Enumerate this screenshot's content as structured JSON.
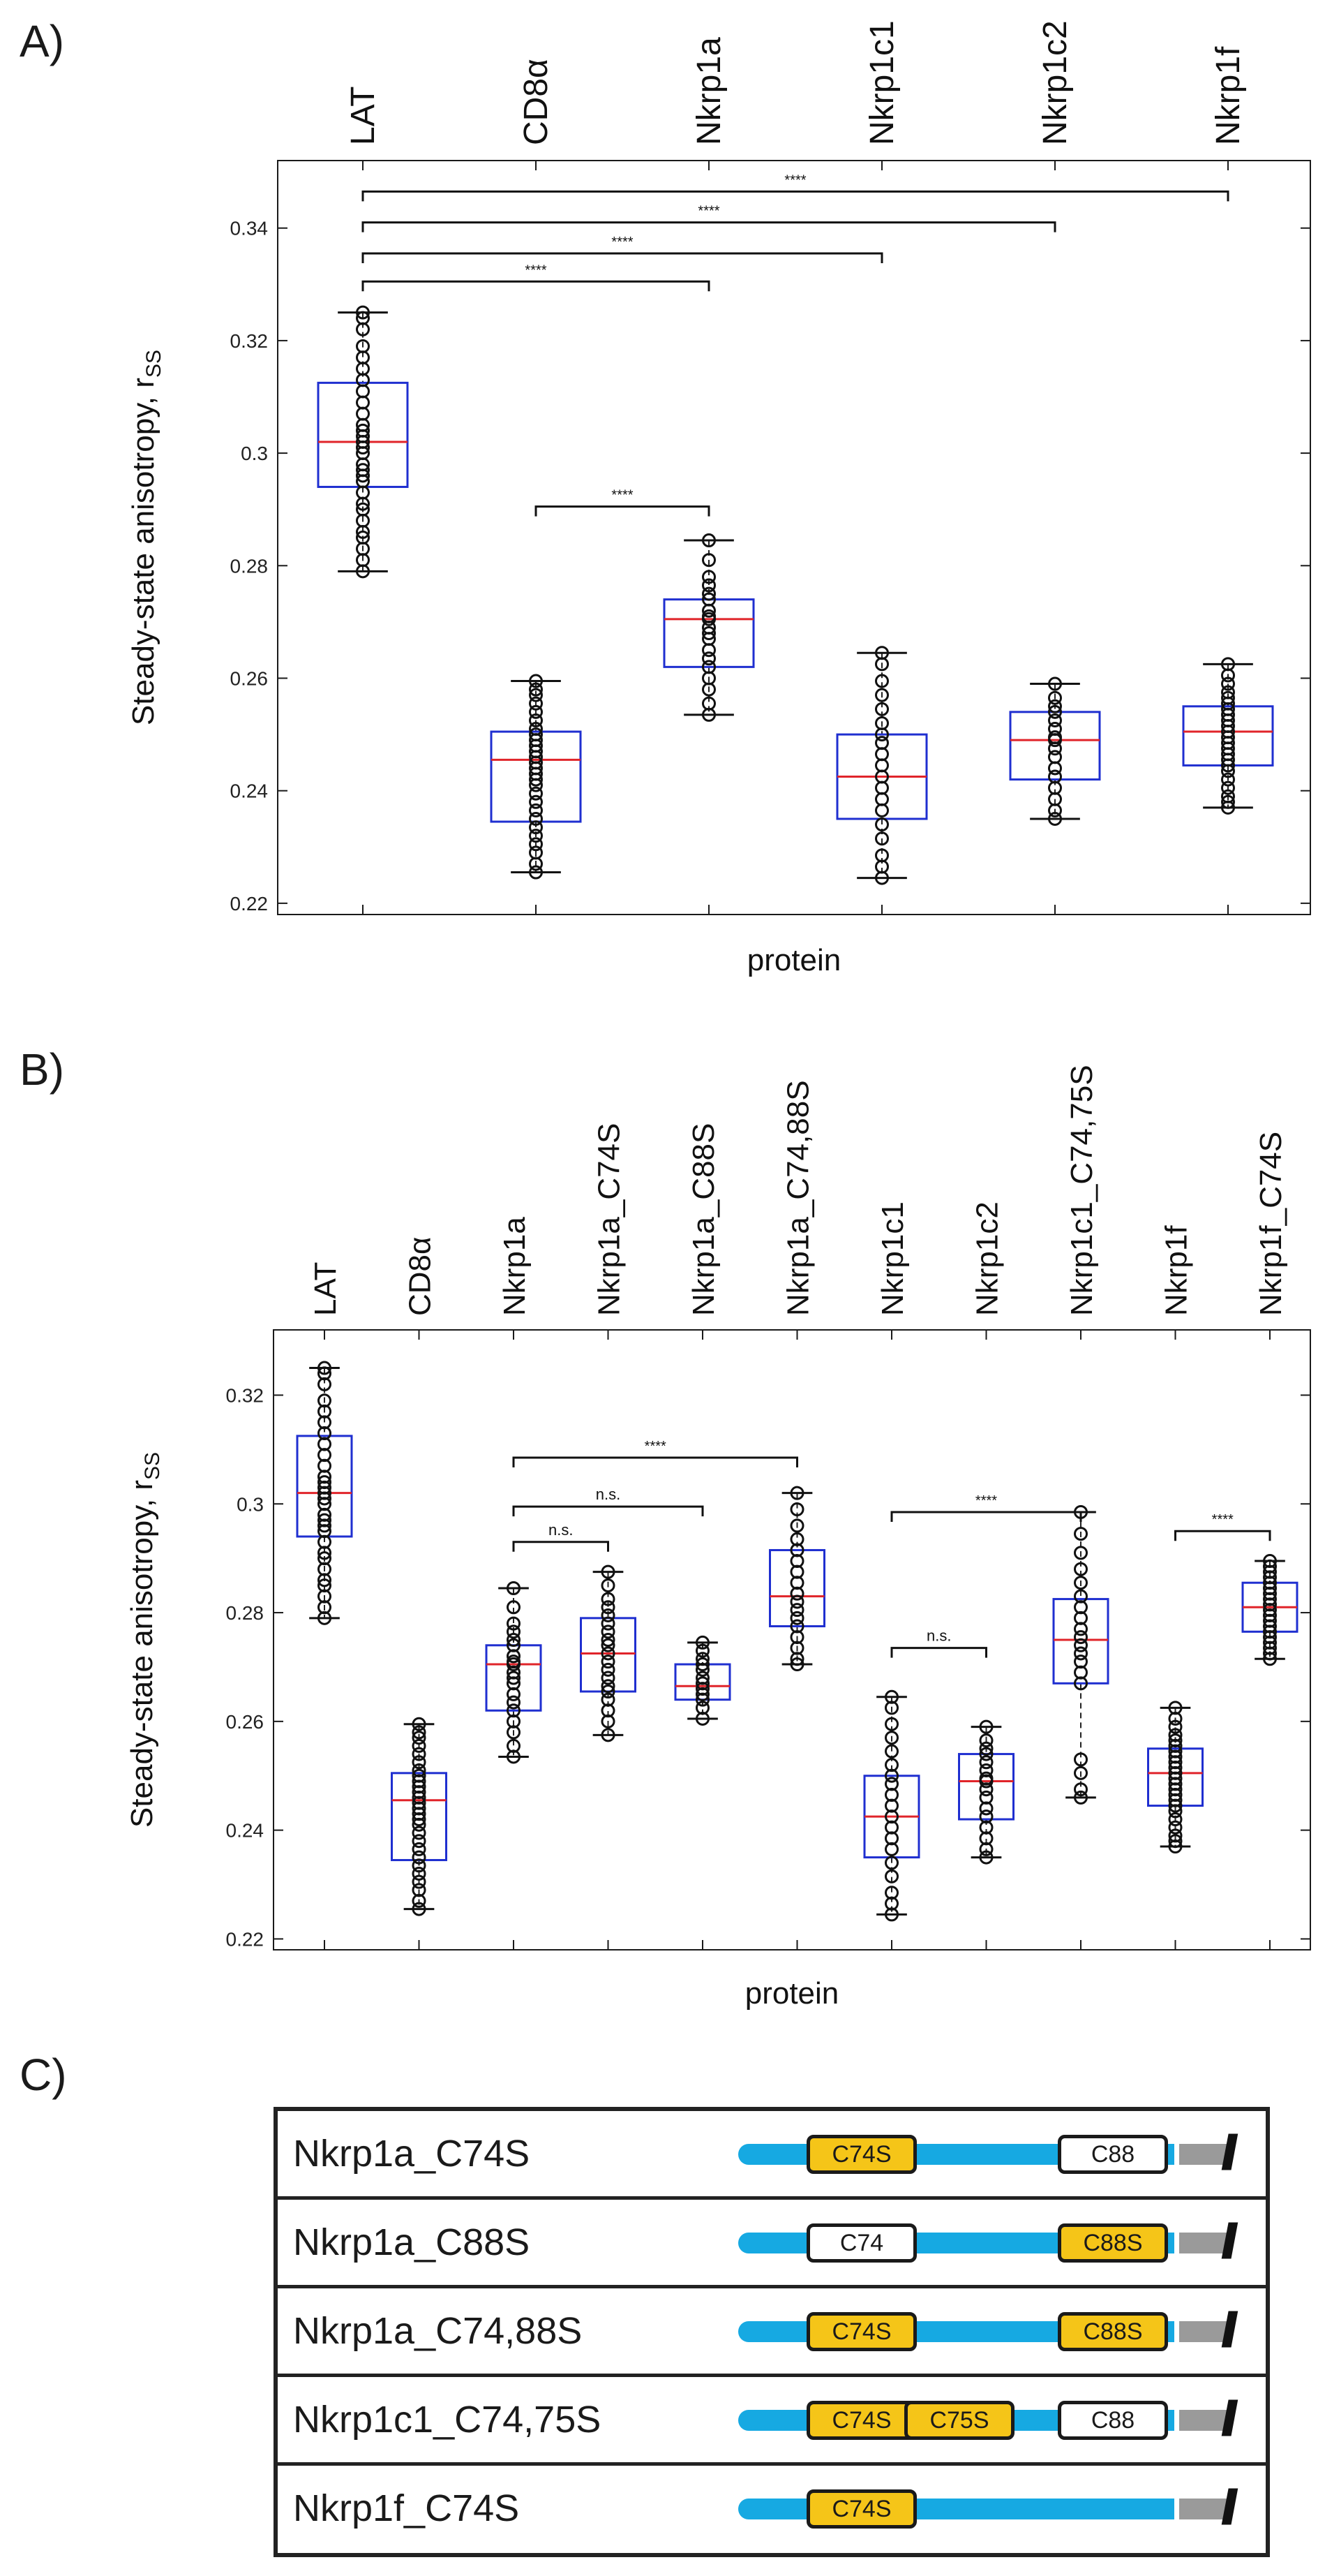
{
  "panels": {
    "a": "A)",
    "b": "B)",
    "c": "C)"
  },
  "chart_data": [
    {
      "type": "box",
      "panel": "A)",
      "categories": [
        "LAT",
        "CD8α",
        "Nkrp1a",
        "Nkrp1c1",
        "Nkrp1c2",
        "Nkrp1f"
      ],
      "xlabel": "protein",
      "ylabel": "Steady-state anisotropy, r",
      "ylabel_sub": "SS",
      "ylim": [
        0.218,
        0.352
      ],
      "yticks": [
        0.22,
        0.24,
        0.26,
        0.28,
        0.3,
        0.32,
        0.34
      ],
      "ytick_labels": [
        "0.22",
        "0.24",
        "0.26",
        "0.28",
        "0.3",
        "0.32",
        "0.34"
      ],
      "boxes": [
        {
          "median": 0.302,
          "q1": 0.294,
          "q3": 0.3125,
          "wlo": 0.279,
          "whi": 0.325,
          "points": [
            0.325,
            0.324,
            0.322,
            0.319,
            0.317,
            0.315,
            0.313,
            0.311,
            0.309,
            0.307,
            0.305,
            0.304,
            0.303,
            0.302,
            0.301,
            0.3,
            0.298,
            0.297,
            0.296,
            0.295,
            0.293,
            0.291,
            0.29,
            0.288,
            0.286,
            0.285,
            0.283,
            0.281,
            0.279
          ]
        },
        {
          "median": 0.2455,
          "q1": 0.2345,
          "q3": 0.2505,
          "wlo": 0.2255,
          "whi": 0.2595,
          "points": [
            0.2595,
            0.258,
            0.257,
            0.2555,
            0.254,
            0.2525,
            0.251,
            0.25,
            0.249,
            0.248,
            0.247,
            0.246,
            0.245,
            0.244,
            0.243,
            0.242,
            0.241,
            0.2395,
            0.238,
            0.2365,
            0.235,
            0.2335,
            0.232,
            0.2305,
            0.229,
            0.227,
            0.2255
          ]
        },
        {
          "median": 0.2705,
          "q1": 0.262,
          "q3": 0.274,
          "wlo": 0.2535,
          "whi": 0.2845,
          "points": [
            0.2845,
            0.281,
            0.278,
            0.2765,
            0.275,
            0.274,
            0.272,
            0.271,
            0.2705,
            0.269,
            0.268,
            0.267,
            0.265,
            0.2635,
            0.262,
            0.26,
            0.258,
            0.2555,
            0.2535
          ]
        },
        {
          "median": 0.2425,
          "q1": 0.235,
          "q3": 0.25,
          "wlo": 0.2245,
          "whi": 0.2645,
          "points": [
            0.2645,
            0.2625,
            0.2595,
            0.257,
            0.2545,
            0.252,
            0.25,
            0.2485,
            0.2465,
            0.2445,
            0.2425,
            0.2405,
            0.2385,
            0.2365,
            0.234,
            0.2315,
            0.2285,
            0.2265,
            0.2245
          ]
        },
        {
          "median": 0.249,
          "q1": 0.242,
          "q3": 0.254,
          "wlo": 0.235,
          "whi": 0.259,
          "points": [
            0.259,
            0.2565,
            0.255,
            0.254,
            0.2525,
            0.251,
            0.2495,
            0.249,
            0.2475,
            0.246,
            0.244,
            0.2425,
            0.2405,
            0.2385,
            0.2365,
            0.235
          ]
        },
        {
          "median": 0.2505,
          "q1": 0.2445,
          "q3": 0.255,
          "wlo": 0.237,
          "whi": 0.2625,
          "points": [
            0.2625,
            0.2605,
            0.259,
            0.2575,
            0.2565,
            0.2555,
            0.2545,
            0.2535,
            0.2525,
            0.2515,
            0.2505,
            0.2495,
            0.2485,
            0.2475,
            0.2465,
            0.2455,
            0.2445,
            0.2435,
            0.242,
            0.2405,
            0.239,
            0.238,
            0.237
          ]
        }
      ],
      "significance": [
        {
          "from": 0,
          "to": 5,
          "y": 0.3465,
          "label": "****"
        },
        {
          "from": 0,
          "to": 4,
          "y": 0.341,
          "label": "****"
        },
        {
          "from": 0,
          "to": 3,
          "y": 0.3355,
          "label": "****"
        },
        {
          "from": 0,
          "to": 2,
          "y": 0.3305,
          "label": "****"
        },
        {
          "from": 1,
          "to": 2,
          "y": 0.2905,
          "label": "****"
        }
      ]
    },
    {
      "type": "box",
      "panel": "B)",
      "categories": [
        "LAT",
        "CD8α",
        "Nkrp1a",
        "Nkrp1a_C74S",
        "Nkrp1a_C88S",
        "Nkrp1a_C74,88S",
        "Nkrp1c1",
        "Nkrp1c2",
        "Nkrp1c1_C74,75S",
        "Nkrp1f",
        "Nkrp1f_C74S"
      ],
      "xlabel": "protein",
      "ylabel": "Steady-state anisotropy, r",
      "ylabel_sub": "SS",
      "ylim": [
        0.218,
        0.332
      ],
      "yticks": [
        0.22,
        0.24,
        0.26,
        0.28,
        0.3,
        0.32
      ],
      "ytick_labels": [
        "0.22",
        "0.24",
        "0.26",
        "0.28",
        "0.3",
        "0.32"
      ],
      "boxes": [
        {
          "median": 0.302,
          "q1": 0.294,
          "q3": 0.3125,
          "wlo": 0.279,
          "whi": 0.325,
          "points": [
            0.325,
            0.324,
            0.322,
            0.319,
            0.317,
            0.315,
            0.313,
            0.311,
            0.309,
            0.307,
            0.305,
            0.304,
            0.303,
            0.302,
            0.301,
            0.3,
            0.298,
            0.297,
            0.296,
            0.295,
            0.293,
            0.291,
            0.29,
            0.288,
            0.286,
            0.285,
            0.283,
            0.281,
            0.279
          ]
        },
        {
          "median": 0.2455,
          "q1": 0.2345,
          "q3": 0.2505,
          "wlo": 0.2255,
          "whi": 0.2595,
          "points": [
            0.2595,
            0.258,
            0.257,
            0.2555,
            0.254,
            0.2525,
            0.251,
            0.25,
            0.249,
            0.248,
            0.247,
            0.246,
            0.245,
            0.244,
            0.243,
            0.242,
            0.241,
            0.2395,
            0.238,
            0.2365,
            0.235,
            0.2335,
            0.232,
            0.2305,
            0.229,
            0.227,
            0.2255
          ]
        },
        {
          "median": 0.2705,
          "q1": 0.262,
          "q3": 0.274,
          "wlo": 0.2535,
          "whi": 0.2845,
          "points": [
            0.2845,
            0.281,
            0.278,
            0.2765,
            0.275,
            0.274,
            0.272,
            0.271,
            0.2705,
            0.269,
            0.268,
            0.267,
            0.265,
            0.2635,
            0.262,
            0.26,
            0.258,
            0.2555,
            0.2535
          ]
        },
        {
          "median": 0.2725,
          "q1": 0.2655,
          "q3": 0.279,
          "wlo": 0.2575,
          "whi": 0.2875,
          "points": [
            0.2875,
            0.285,
            0.2825,
            0.281,
            0.2795,
            0.278,
            0.2765,
            0.275,
            0.274,
            0.2725,
            0.271,
            0.2695,
            0.268,
            0.2665,
            0.2655,
            0.264,
            0.262,
            0.26,
            0.2575
          ]
        },
        {
          "median": 0.2665,
          "q1": 0.264,
          "q3": 0.2705,
          "wlo": 0.2605,
          "whi": 0.2745,
          "points": [
            0.2745,
            0.273,
            0.2715,
            0.2705,
            0.2695,
            0.268,
            0.267,
            0.266,
            0.265,
            0.264,
            0.2625,
            0.2605
          ]
        },
        {
          "median": 0.283,
          "q1": 0.2775,
          "q3": 0.2915,
          "wlo": 0.2705,
          "whi": 0.302,
          "points": [
            0.302,
            0.299,
            0.296,
            0.2935,
            0.2915,
            0.2895,
            0.2875,
            0.2855,
            0.2835,
            0.282,
            0.2805,
            0.279,
            0.2775,
            0.2755,
            0.2735,
            0.2715,
            0.2705
          ]
        },
        {
          "median": 0.2425,
          "q1": 0.235,
          "q3": 0.25,
          "wlo": 0.2245,
          "whi": 0.2645,
          "points": [
            0.2645,
            0.2625,
            0.2595,
            0.257,
            0.2545,
            0.252,
            0.25,
            0.2485,
            0.2465,
            0.2445,
            0.2425,
            0.2405,
            0.2385,
            0.2365,
            0.234,
            0.2315,
            0.2285,
            0.2265,
            0.2245
          ]
        },
        {
          "median": 0.249,
          "q1": 0.242,
          "q3": 0.254,
          "wlo": 0.235,
          "whi": 0.259,
          "points": [
            0.259,
            0.2565,
            0.255,
            0.254,
            0.2525,
            0.251,
            0.2495,
            0.249,
            0.2475,
            0.246,
            0.244,
            0.2425,
            0.2405,
            0.2385,
            0.2365,
            0.235
          ]
        },
        {
          "median": 0.275,
          "q1": 0.267,
          "q3": 0.2825,
          "wlo": 0.246,
          "whi": 0.2985,
          "points": [
            0.2985,
            0.2945,
            0.291,
            0.288,
            0.2855,
            0.283,
            0.281,
            0.279,
            0.277,
            0.2755,
            0.274,
            0.2725,
            0.271,
            0.269,
            0.267,
            0.253,
            0.2505,
            0.2475,
            0.246
          ]
        },
        {
          "median": 0.2505,
          "q1": 0.2445,
          "q3": 0.255,
          "wlo": 0.237,
          "whi": 0.2625,
          "points": [
            0.2625,
            0.2605,
            0.259,
            0.2575,
            0.2565,
            0.2555,
            0.2545,
            0.2535,
            0.2525,
            0.2515,
            0.2505,
            0.2495,
            0.2485,
            0.2475,
            0.2465,
            0.2455,
            0.2445,
            0.2435,
            0.242,
            0.2405,
            0.239,
            0.238,
            0.237
          ]
        },
        {
          "median": 0.281,
          "q1": 0.2765,
          "q3": 0.2855,
          "wlo": 0.2715,
          "whi": 0.2895,
          "points": [
            0.2895,
            0.2885,
            0.2875,
            0.2865,
            0.2855,
            0.2845,
            0.2835,
            0.2825,
            0.2815,
            0.2805,
            0.2795,
            0.2785,
            0.2775,
            0.2765,
            0.2755,
            0.2745,
            0.2735,
            0.2725,
            0.2715
          ]
        }
      ],
      "significance": [
        {
          "from": 2,
          "to": 5,
          "y": 0.3085,
          "label": "****"
        },
        {
          "from": 2,
          "to": 4,
          "y": 0.2995,
          "label": "n.s."
        },
        {
          "from": 2,
          "to": 3,
          "y": 0.293,
          "label": "n.s."
        },
        {
          "from": 6,
          "to": 8,
          "y": 0.2985,
          "label": "****"
        },
        {
          "from": 6,
          "to": 7,
          "y": 0.2735,
          "label": "n.s."
        },
        {
          "from": 9,
          "to": 10,
          "y": 0.295,
          "label": "****"
        }
      ]
    }
  ],
  "constructs": {
    "rows": [
      {
        "name": "Nkrp1a_C74S",
        "has_bar_end": true,
        "boxes": [
          {
            "label": "C74S",
            "mutated": true,
            "slot": 0
          },
          {
            "label": "C88",
            "mutated": false,
            "slot": 2
          }
        ]
      },
      {
        "name": "Nkrp1a_C88S",
        "has_bar_end": true,
        "boxes": [
          {
            "label": "C74",
            "mutated": false,
            "slot": 0
          },
          {
            "label": "C88S",
            "mutated": true,
            "slot": 2
          }
        ]
      },
      {
        "name": "Nkrp1a_C74,88S",
        "has_bar_end": true,
        "boxes": [
          {
            "label": "C74S",
            "mutated": true,
            "slot": 0
          },
          {
            "label": "C88S",
            "mutated": true,
            "slot": 2
          }
        ]
      },
      {
        "name": "Nkrp1c1_C74,75S",
        "has_bar_end": true,
        "boxes": [
          {
            "label": "C74S",
            "mutated": true,
            "slot": 0
          },
          {
            "label": "C75S",
            "mutated": true,
            "slot": 1
          },
          {
            "label": "C88",
            "mutated": false,
            "slot": 2
          }
        ]
      },
      {
        "name": "Nkrp1f_C74S",
        "has_bar_end": true,
        "boxes": [
          {
            "label": "C74S",
            "mutated": true,
            "slot": 0
          }
        ]
      }
    ],
    "break_mark": "//"
  },
  "colors": {
    "box": "#1f2fd0",
    "median": "#e0242a",
    "axis": "#1a1a1a",
    "points": "#111111",
    "bar": "#16a9e2",
    "mutated": "#f5c518",
    "stub": "#9a9a9a"
  }
}
